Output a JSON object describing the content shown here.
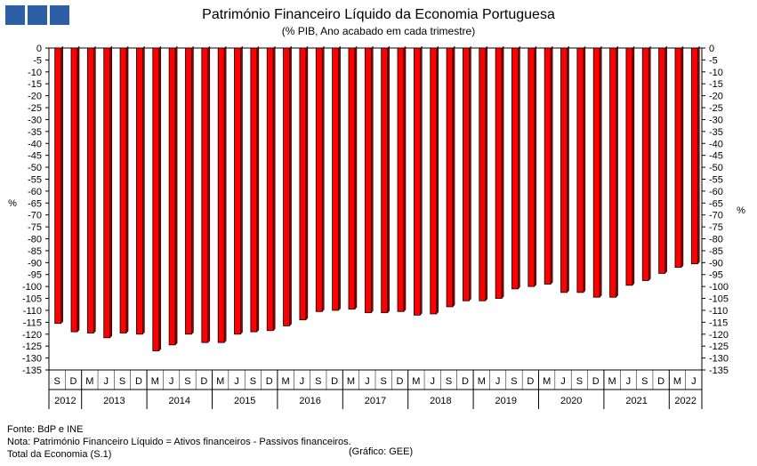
{
  "logo": {
    "colors": [
      "#2d5fa4",
      "#2d5fa4",
      "#2d5fa4"
    ]
  },
  "title": "Património Financeiro Líquido da Economia Portuguesa",
  "subtitle": "(% PIB, Ano acabado em cada trimestre)",
  "footer": {
    "source": "Fonte: BdP e INE",
    "note": "Nota: Património Financeiro Líquido = Ativos financeiros - Passivos financeiros.",
    "total": "Total da Economia (S.1)",
    "credit": "(Gráfico: GEE)"
  },
  "chart_data": {
    "type": "bar",
    "bar_color": "#ff0000",
    "ylabel_left": "%",
    "ylabel_right": "%",
    "ylim": [
      -135,
      0
    ],
    "ytick_step": 5,
    "grid": false,
    "legend": "none",
    "quarter_labels": [
      "S",
      "D",
      "M",
      "J",
      "S",
      "D",
      "M",
      "J",
      "S",
      "D",
      "M",
      "J",
      "S",
      "D",
      "M",
      "J",
      "S",
      "D",
      "M",
      "J",
      "S",
      "D",
      "M",
      "J",
      "S",
      "D",
      "M",
      "J",
      "S",
      "D",
      "M",
      "J",
      "S",
      "D",
      "M",
      "J",
      "S",
      "D",
      "M",
      "J"
    ],
    "years": [
      {
        "label": "2012",
        "count": 2
      },
      {
        "label": "2013",
        "count": 4
      },
      {
        "label": "2014",
        "count": 4
      },
      {
        "label": "2015",
        "count": 4
      },
      {
        "label": "2016",
        "count": 4
      },
      {
        "label": "2017",
        "count": 4
      },
      {
        "label": "2018",
        "count": 4
      },
      {
        "label": "2019",
        "count": 4
      },
      {
        "label": "2020",
        "count": 4
      },
      {
        "label": "2021",
        "count": 4
      },
      {
        "label": "2022",
        "count": 2
      }
    ],
    "values": [
      -115.5,
      -119.0,
      -119.5,
      -121.5,
      -119.5,
      -120.0,
      -127.0,
      -124.5,
      -120.0,
      -123.5,
      -123.5,
      -120.0,
      -119.0,
      -118.5,
      -116.5,
      -114.0,
      -110.5,
      -110.0,
      -109.5,
      -111.0,
      -111.0,
      -110.5,
      -112.0,
      -111.5,
      -108.5,
      -106.0,
      -106.0,
      -105.0,
      -101.0,
      -100.0,
      -99.0,
      -102.5,
      -102.5,
      -104.5,
      -104.5,
      -99.5,
      -97.5,
      -94.5,
      -92.0,
      -90.5
    ]
  }
}
